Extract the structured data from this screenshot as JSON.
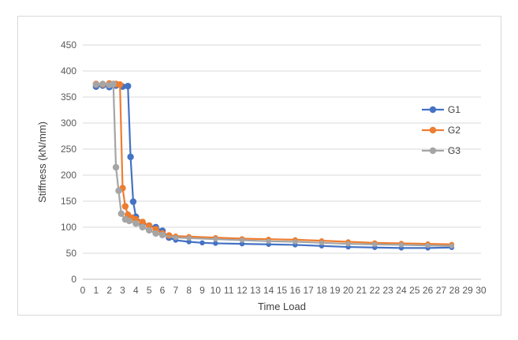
{
  "chart_data": {
    "type": "line",
    "title": "",
    "xlabel": "Time Load",
    "ylabel": "Stiffness (kN/mm)",
    "xlim": [
      0,
      30
    ],
    "ylim": [
      0,
      450
    ],
    "xticks": [
      0,
      1,
      2,
      3,
      4,
      5,
      6,
      7,
      8,
      9,
      10,
      11,
      12,
      13,
      14,
      15,
      16,
      17,
      18,
      19,
      20,
      21,
      22,
      23,
      24,
      25,
      26,
      27,
      28,
      29,
      30
    ],
    "yticks": [
      0,
      50,
      100,
      150,
      200,
      250,
      300,
      350,
      400,
      450
    ],
    "grid": "horizontal",
    "legend": "right",
    "series": [
      {
        "name": "G1",
        "color": "#4472C4",
        "points": [
          [
            1,
            370
          ],
          [
            1.5,
            372
          ],
          [
            2,
            369
          ],
          [
            2.5,
            372
          ],
          [
            3,
            370
          ],
          [
            3.4,
            371
          ],
          [
            3.6,
            235
          ],
          [
            3.8,
            149
          ],
          [
            4,
            120
          ],
          [
            4.5,
            108
          ],
          [
            5,
            103
          ],
          [
            5.5,
            100
          ],
          [
            6,
            93
          ],
          [
            6.5,
            80
          ],
          [
            7,
            75
          ],
          [
            8,
            72
          ],
          [
            9,
            70
          ],
          [
            10,
            69
          ],
          [
            12,
            68
          ],
          [
            14,
            67
          ],
          [
            16,
            66
          ],
          [
            18,
            64
          ],
          [
            20,
            62
          ],
          [
            22,
            61
          ],
          [
            24,
            60
          ],
          [
            26,
            60
          ],
          [
            27.8,
            61
          ]
        ]
      },
      {
        "name": "G2",
        "color": "#ED7D31",
        "points": [
          [
            1,
            375
          ],
          [
            1.5,
            374
          ],
          [
            2,
            376
          ],
          [
            2.5,
            375
          ],
          [
            2.8,
            374
          ],
          [
            3,
            175
          ],
          [
            3.2,
            140
          ],
          [
            3.4,
            124
          ],
          [
            3.7,
            118
          ],
          [
            4,
            115
          ],
          [
            4.5,
            110
          ],
          [
            5,
            103
          ],
          [
            5.5,
            96
          ],
          [
            6,
            88
          ],
          [
            6.5,
            84
          ],
          [
            7,
            83
          ],
          [
            8,
            82
          ],
          [
            10,
            80
          ],
          [
            12,
            78
          ],
          [
            14,
            77
          ],
          [
            16,
            76
          ],
          [
            18,
            74
          ],
          [
            20,
            72
          ],
          [
            22,
            70
          ],
          [
            24,
            69
          ],
          [
            26,
            68
          ],
          [
            27.8,
            67
          ]
        ]
      },
      {
        "name": "G3",
        "color": "#A5A5A5",
        "points": [
          [
            1,
            374
          ],
          [
            1.5,
            375
          ],
          [
            2,
            373
          ],
          [
            2.3,
            375
          ],
          [
            2.5,
            215
          ],
          [
            2.7,
            170
          ],
          [
            2.9,
            126
          ],
          [
            3.2,
            115
          ],
          [
            3.5,
            112
          ],
          [
            4,
            107
          ],
          [
            4.5,
            100
          ],
          [
            5,
            94
          ],
          [
            5.5,
            88
          ],
          [
            6,
            85
          ],
          [
            7,
            80
          ],
          [
            8,
            79
          ],
          [
            10,
            77
          ],
          [
            12,
            75
          ],
          [
            14,
            73
          ],
          [
            16,
            72
          ],
          [
            18,
            70
          ],
          [
            20,
            68
          ],
          [
            22,
            67
          ],
          [
            24,
            66
          ],
          [
            26,
            65
          ],
          [
            27.8,
            64
          ]
        ]
      }
    ]
  }
}
